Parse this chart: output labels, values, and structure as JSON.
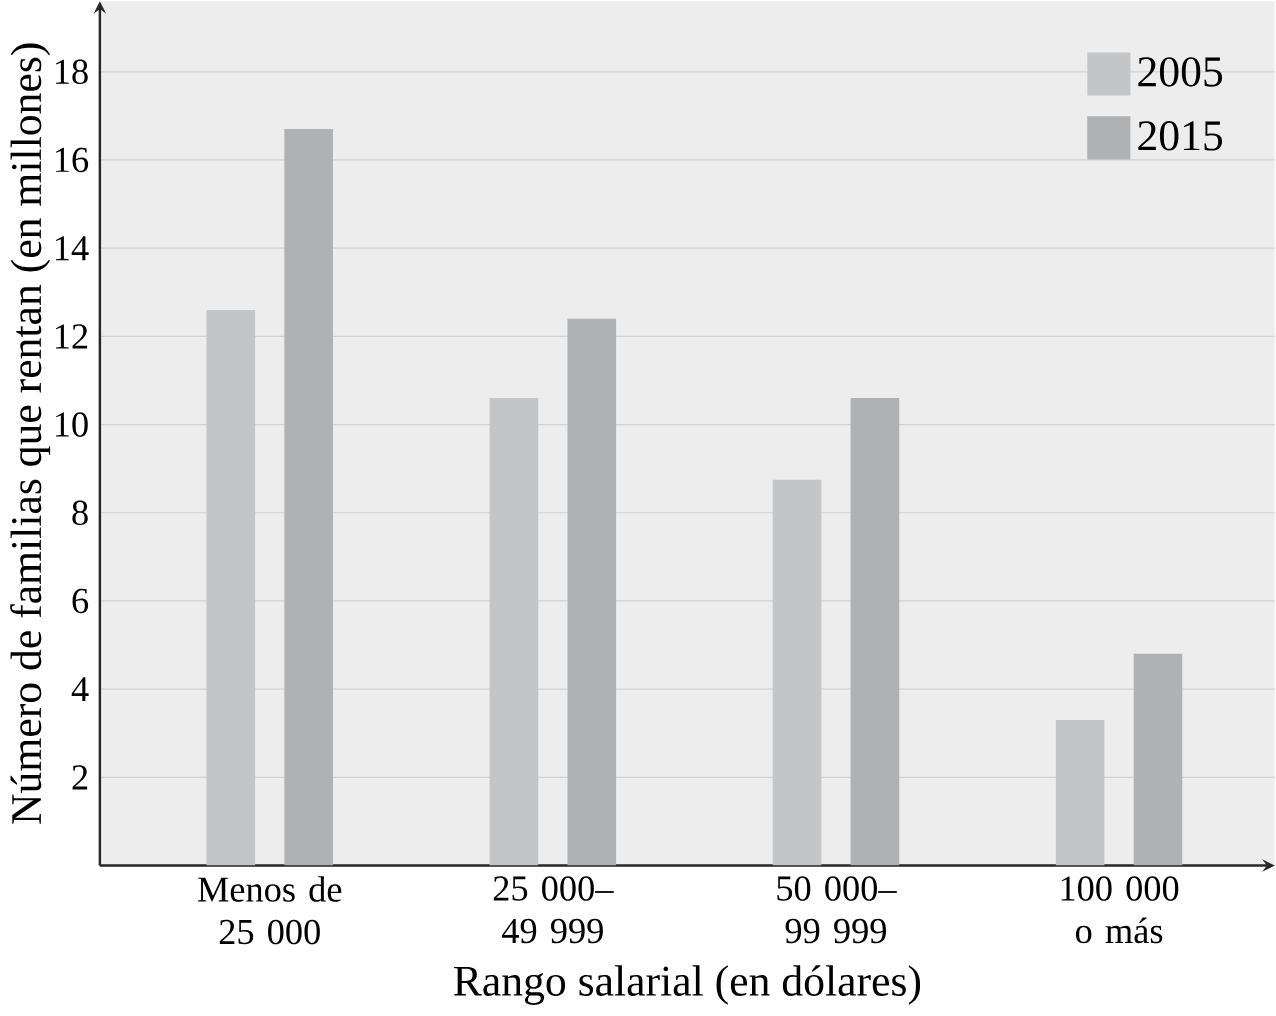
{
  "chart_data": {
    "type": "bar",
    "xlabel": "Rango salarial (en dólares)",
    "ylabel": "Número de familias que rentan (en millones)",
    "categories": [
      "Menos de\n25 000",
      "25 000–\n49 999",
      "50 000–\n99 999",
      "100 000\no más"
    ],
    "series": [
      {
        "name": "2005",
        "color": "#c4c5c7",
        "values": [
          12.6,
          10.6,
          8.75,
          3.3
        ]
      },
      {
        "name": "2015",
        "color": "#b0b1b3",
        "values": [
          16.7,
          12.4,
          10.6,
          4.8
        ]
      }
    ],
    "ylim": [
      0,
      19.6
    ],
    "yticks": [
      2,
      4,
      6,
      8,
      10,
      12,
      14,
      16,
      18
    ],
    "grid": "y",
    "legend": "top right"
  }
}
